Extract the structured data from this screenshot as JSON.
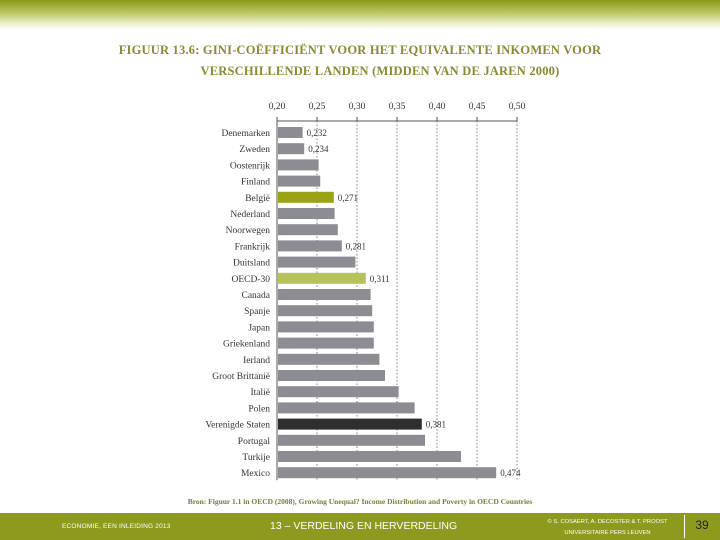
{
  "slide": {
    "title_line1": "FIGUUR 13.6: GINI-COËFFICIËNT VOOR HET EQUIVALENTE INKOMEN VOOR",
    "title_line2": "VERSCHILLENDE LANDEN (MIDDEN VAN DE JAREN 2000)",
    "source": "Bron: Figuur 1.1 in OECD (2008), Growing Unequal? Income Distribution and Poverty in OECD Countries",
    "footer_left": "ECONOMIE, EEN INLEIDING 2013",
    "footer_center": "13 – VERDELING EN HERVERDELING",
    "footer_right_line1": "© S. COSAERT, A. DECOSTER & T. PROOST",
    "footer_right_line2": "UNIVERSITAIRE PERS LEUVEN",
    "page_number": "39"
  },
  "colors": {
    "bar_default": "#8c8c93",
    "bar_belgie": "#9aa316",
    "bar_oecd": "#b7c25a",
    "bar_us": "#2e2e2e",
    "title": "#8a8a33",
    "footer": "#8e9a1e"
  },
  "chart_data": {
    "type": "bar",
    "orientation": "horizontal",
    "x_ticks": [
      "0,20",
      "0,25",
      "0,30",
      "0,35",
      "0,40",
      "0,45",
      "0,50"
    ],
    "xlim": [
      0.2,
      0.5
    ],
    "grid": "dashed vertical lines at tick positions",
    "categories": [
      "Denemarken",
      "Zweden",
      "Oostenrijk",
      "Finland",
      "België",
      "Nederland",
      "Noorwegen",
      "Frankrijk",
      "Duitsland",
      "OECD-30",
      "Canada",
      "Spanje",
      "Japan",
      "Griekenland",
      "Ierland",
      "Groot Brittanië",
      "Italië",
      "Polen",
      "Verenigde Staten",
      "Portugal",
      "Turkije",
      "Mexico"
    ],
    "values": [
      0.232,
      0.234,
      0.252,
      0.254,
      0.271,
      0.272,
      0.276,
      0.281,
      0.298,
      0.311,
      0.317,
      0.319,
      0.321,
      0.321,
      0.328,
      0.335,
      0.352,
      0.372,
      0.381,
      0.385,
      0.43,
      0.474
    ],
    "highlight": [
      "default",
      "default",
      "default",
      "default",
      "belgie",
      "default",
      "default",
      "default",
      "default",
      "oecd",
      "default",
      "default",
      "default",
      "default",
      "default",
      "default",
      "default",
      "default",
      "us",
      "default",
      "default",
      "default"
    ],
    "data_labels": [
      "0,232",
      "0,234",
      "",
      "",
      "0,271",
      "",
      "",
      "0,281",
      "",
      "0,311",
      "",
      "",
      "",
      "",
      "",
      "",
      "",
      "",
      "0,381",
      "",
      "",
      "0,474"
    ]
  }
}
